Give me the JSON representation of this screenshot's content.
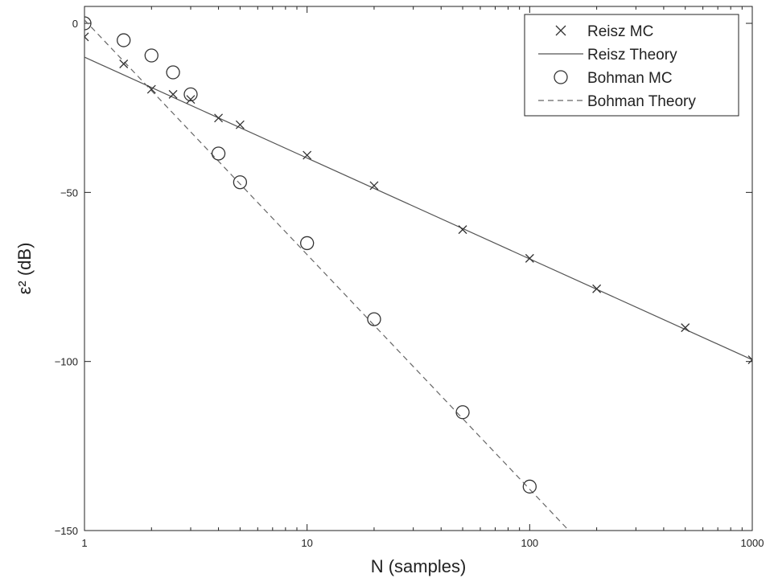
{
  "chart_data": {
    "type": "scatter",
    "xscale": "log",
    "xlim": [
      1,
      1000
    ],
    "ylim": [
      -150,
      5
    ],
    "xticks": [
      1,
      10,
      100,
      1000
    ],
    "xtick_labels": [
      "1",
      "10",
      "100",
      "1000"
    ],
    "yticks": [
      0,
      -50,
      -100,
      -150
    ],
    "ytick_labels": [
      "0",
      "−50",
      "−100",
      "−150"
    ],
    "xlabel": "N (samples)",
    "ylabel": "ε² (dB)",
    "grid": false,
    "legend_position": "top-right",
    "series": [
      {
        "name": "Reisz MC",
        "style": "x-marker",
        "color": "#333333",
        "x": [
          1,
          1.5,
          2,
          2.5,
          3,
          4,
          5,
          10,
          20,
          50,
          100,
          200,
          500,
          1000
        ],
        "y": [
          -4,
          -12,
          -19.5,
          -21,
          -22.5,
          -28,
          -30,
          -39,
          -48,
          -61,
          -69.5,
          -78.5,
          -90,
          -99.5
        ]
      },
      {
        "name": "Reisz Theory",
        "style": "solid-line",
        "color": "#555555",
        "x": [
          1,
          1000
        ],
        "y": [
          -10,
          -99.5
        ]
      },
      {
        "name": "Bohman MC",
        "style": "circle-marker",
        "color": "#333333",
        "x": [
          1,
          1.5,
          2,
          2.5,
          3,
          4,
          5,
          10,
          20,
          50,
          100
        ],
        "y": [
          0,
          -5,
          -9.5,
          -14.5,
          -21,
          -38.5,
          -47,
          -65,
          -87.5,
          -115,
          -137
        ]
      },
      {
        "name": "Bohman Theory",
        "style": "dashed-line",
        "color": "#666666",
        "x": [
          1,
          150
        ],
        "y": [
          1,
          -150
        ]
      }
    ]
  }
}
